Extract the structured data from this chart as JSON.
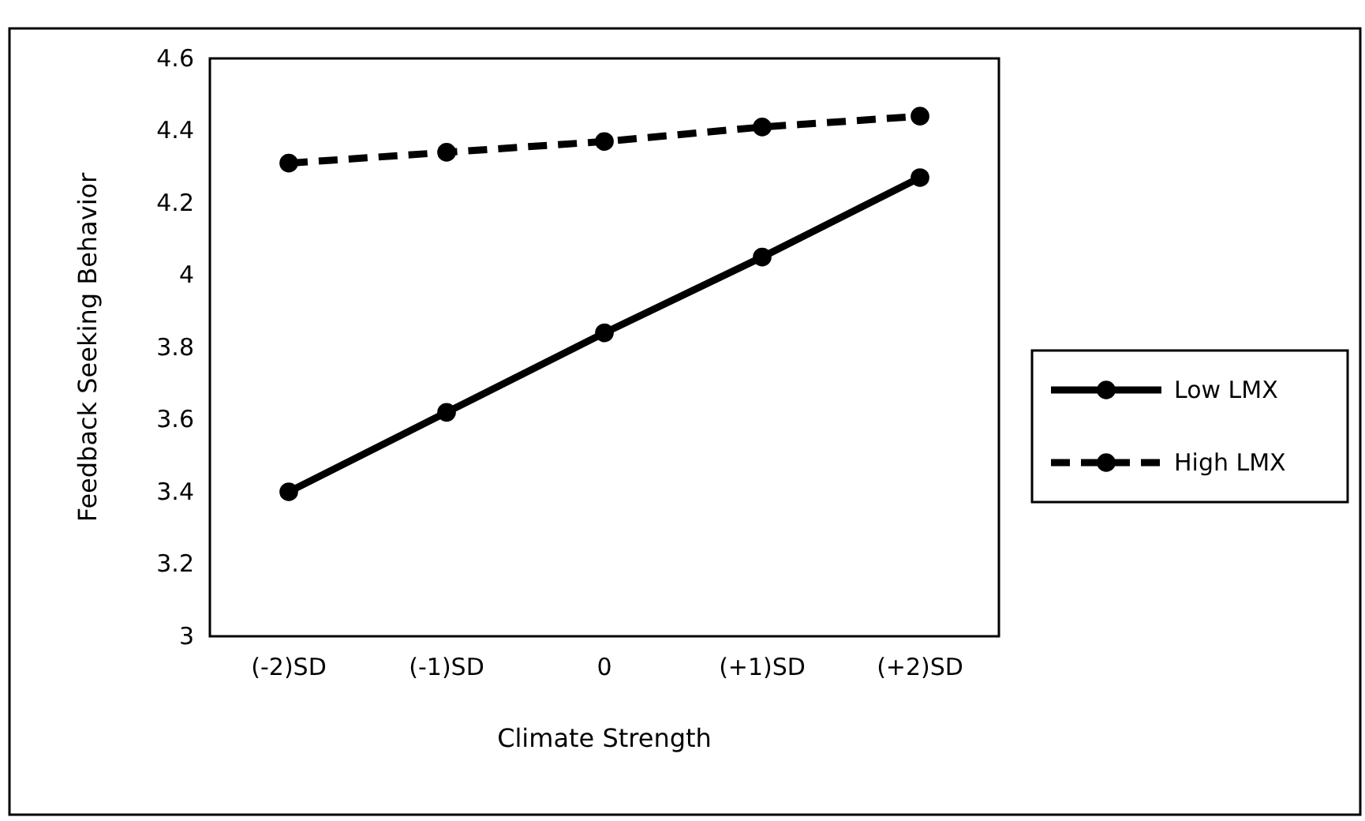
{
  "chart_data": {
    "type": "line",
    "xlabel": "Climate Strength",
    "ylabel": "Feedback Seeking Behavior",
    "categories": [
      "(-2)SD",
      "(-1)SD",
      "0",
      "(+1)SD",
      "(+2)SD"
    ],
    "series": [
      {
        "name": "Low LMX",
        "color": "#000000",
        "line_style": "solid",
        "values": [
          3.4,
          3.62,
          3.84,
          4.05,
          4.27
        ]
      },
      {
        "name": "High LMX",
        "color": "#000000",
        "line_style": "dashed",
        "values": [
          4.31,
          4.34,
          4.37,
          4.41,
          4.44
        ]
      }
    ],
    "ylim": [
      3,
      4.6
    ],
    "yticks": [
      3,
      3.2,
      3.4,
      3.6,
      3.8,
      4,
      4.2,
      4.4,
      4.6
    ],
    "grid": false,
    "legend": "right",
    "marker": "circle"
  }
}
